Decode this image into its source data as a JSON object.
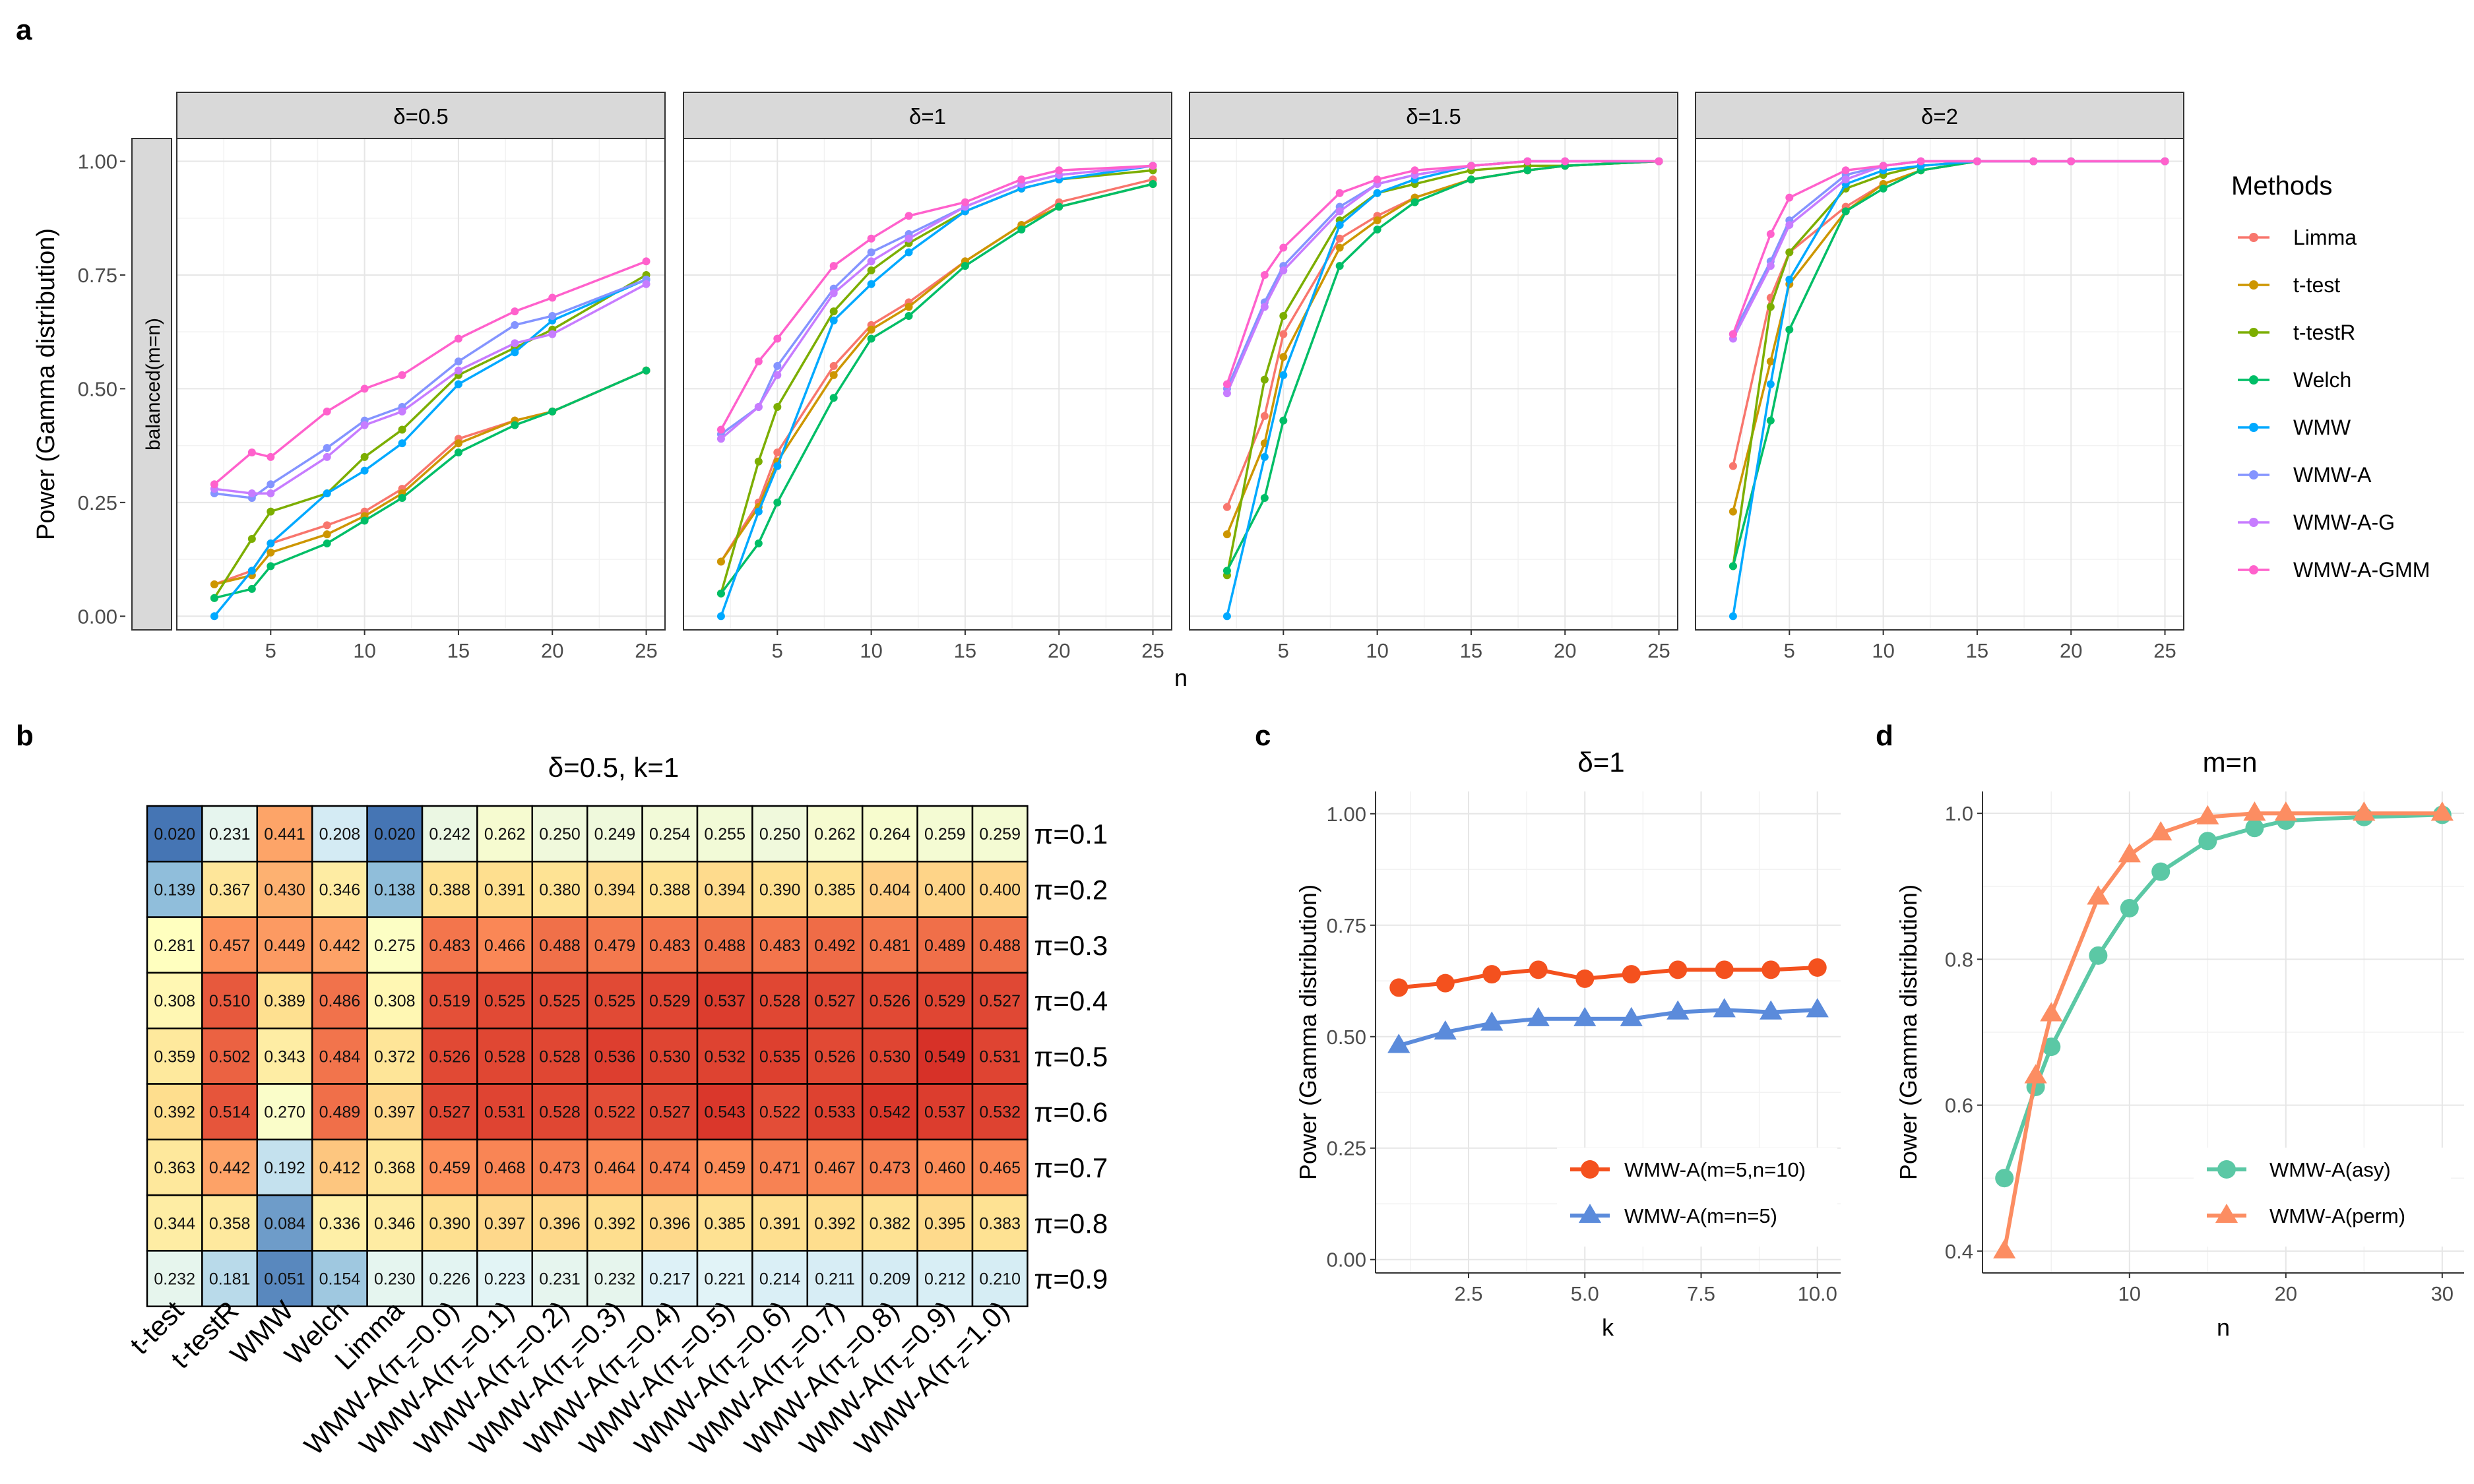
{
  "panel_labels": {
    "a": "a",
    "b": "b",
    "c": "c",
    "d": "d"
  },
  "chart_data": [
    {
      "panel": "a",
      "type": "line",
      "facets": [
        "δ=0.5",
        "δ=1",
        "δ=1.5",
        "δ=2"
      ],
      "strip_y": "balanced(m=n)",
      "xlabel": "n",
      "ylabel": "Power (Gamma distribution)",
      "xlim": [
        0,
        26
      ],
      "ylim": [
        -0.03,
        1.05
      ],
      "x_ticks": [
        5,
        10,
        15,
        20,
        25
      ],
      "y_ticks": [
        "0.00",
        "0.25",
        "0.50",
        "0.75",
        "1.00"
      ],
      "grid": true,
      "legend_title": "Methods",
      "legend_position": "right",
      "x": [
        2,
        4,
        5,
        8,
        10,
        12,
        15,
        18,
        20,
        25
      ],
      "series": [
        {
          "name": "Limma",
          "color": "#F8766D",
          "values": [
            [
              0.07,
              0.1,
              0.16,
              0.2,
              0.23,
              0.28,
              0.39,
              0.43,
              0.45,
              0.54
            ],
            [
              0.12,
              0.25,
              0.36,
              0.55,
              0.64,
              0.69,
              0.78,
              0.86,
              0.91,
              0.96
            ],
            [
              0.24,
              0.44,
              0.62,
              0.83,
              0.88,
              0.92,
              0.96,
              0.98,
              0.99,
              1.0
            ],
            [
              0.33,
              0.7,
              0.8,
              0.9,
              0.95,
              0.98,
              1.0,
              1.0,
              1.0,
              1.0
            ]
          ]
        },
        {
          "name": "t-test",
          "color": "#CD9600",
          "values": [
            [
              0.07,
              0.09,
              0.14,
              0.18,
              0.22,
              0.27,
              0.38,
              0.43,
              0.45,
              0.54
            ],
            [
              0.12,
              0.24,
              0.34,
              0.53,
              0.63,
              0.68,
              0.78,
              0.86,
              0.9,
              0.95
            ],
            [
              0.18,
              0.38,
              0.57,
              0.81,
              0.87,
              0.92,
              0.96,
              0.98,
              0.99,
              1.0
            ],
            [
              0.23,
              0.56,
              0.73,
              0.89,
              0.95,
              0.98,
              1.0,
              1.0,
              1.0,
              1.0
            ]
          ]
        },
        {
          "name": "t-testR",
          "color": "#7CAE00",
          "values": [
            [
              0.04,
              0.17,
              0.23,
              0.27,
              0.35,
              0.41,
              0.53,
              0.59,
              0.63,
              0.75
            ],
            [
              0.05,
              0.34,
              0.46,
              0.67,
              0.76,
              0.82,
              0.89,
              0.94,
              0.96,
              0.98
            ],
            [
              0.09,
              0.52,
              0.66,
              0.87,
              0.93,
              0.95,
              0.98,
              0.99,
              0.99,
              1.0
            ],
            [
              0.11,
              0.68,
              0.8,
              0.94,
              0.97,
              0.99,
              1.0,
              1.0,
              1.0,
              1.0
            ]
          ]
        },
        {
          "name": "Welch",
          "color": "#00BE67",
          "values": [
            [
              0.04,
              0.06,
              0.11,
              0.16,
              0.21,
              0.26,
              0.36,
              0.42,
              0.45,
              0.54
            ],
            [
              0.05,
              0.16,
              0.25,
              0.48,
              0.61,
              0.66,
              0.77,
              0.85,
              0.9,
              0.95
            ],
            [
              0.1,
              0.26,
              0.43,
              0.77,
              0.85,
              0.91,
              0.96,
              0.98,
              0.99,
              1.0
            ],
            [
              0.11,
              0.43,
              0.63,
              0.89,
              0.94,
              0.98,
              1.0,
              1.0,
              1.0,
              1.0
            ]
          ]
        },
        {
          "name": "WMW",
          "color": "#00A9FF",
          "values": [
            [
              0.0,
              0.1,
              0.16,
              0.27,
              0.32,
              0.38,
              0.51,
              0.58,
              0.65,
              0.74
            ],
            [
              0.0,
              0.23,
              0.33,
              0.65,
              0.73,
              0.8,
              0.89,
              0.94,
              0.96,
              0.99
            ],
            [
              0.0,
              0.35,
              0.53,
              0.86,
              0.93,
              0.96,
              0.99,
              1.0,
              1.0,
              1.0
            ],
            [
              0.0,
              0.51,
              0.74,
              0.95,
              0.98,
              0.99,
              1.0,
              1.0,
              1.0,
              1.0
            ]
          ]
        },
        {
          "name": "WMW-A",
          "color": "#8494FF",
          "values": [
            [
              0.27,
              0.26,
              0.29,
              0.37,
              0.43,
              0.46,
              0.56,
              0.64,
              0.66,
              0.74
            ],
            [
              0.4,
              0.46,
              0.55,
              0.72,
              0.8,
              0.84,
              0.9,
              0.95,
              0.97,
              0.99
            ],
            [
              0.5,
              0.69,
              0.77,
              0.9,
              0.95,
              0.97,
              0.99,
              1.0,
              1.0,
              1.0
            ],
            [
              0.62,
              0.78,
              0.87,
              0.97,
              0.99,
              1.0,
              1.0,
              1.0,
              1.0,
              1.0
            ]
          ]
        },
        {
          "name": "WMW-A-G",
          "color": "#C77CFF",
          "values": [
            [
              0.28,
              0.27,
              0.27,
              0.35,
              0.42,
              0.45,
              0.54,
              0.6,
              0.62,
              0.73
            ],
            [
              0.39,
              0.46,
              0.53,
              0.71,
              0.78,
              0.83,
              0.9,
              0.95,
              0.97,
              0.99
            ],
            [
              0.49,
              0.68,
              0.76,
              0.89,
              0.95,
              0.97,
              0.99,
              1.0,
              1.0,
              1.0
            ],
            [
              0.61,
              0.77,
              0.86,
              0.96,
              0.99,
              1.0,
              1.0,
              1.0,
              1.0,
              1.0
            ]
          ]
        },
        {
          "name": "WMW-A-GMM",
          "color": "#FF61CC",
          "values": [
            [
              0.29,
              0.36,
              0.35,
              0.45,
              0.5,
              0.53,
              0.61,
              0.67,
              0.7,
              0.78
            ],
            [
              0.41,
              0.56,
              0.61,
              0.77,
              0.83,
              0.88,
              0.91,
              0.96,
              0.98,
              0.99
            ],
            [
              0.51,
              0.75,
              0.81,
              0.93,
              0.96,
              0.98,
              0.99,
              1.0,
              1.0,
              1.0
            ],
            [
              0.62,
              0.84,
              0.92,
              0.98,
              0.99,
              1.0,
              1.0,
              1.0,
              1.0,
              1.0
            ]
          ]
        }
      ]
    },
    {
      "panel": "b",
      "type": "heatmap",
      "title": "δ=0.5, k=1",
      "rows": [
        "π=0.1",
        "π=0.2",
        "π=0.3",
        "π=0.4",
        "π=0.5",
        "π=0.6",
        "π=0.7",
        "π=0.8",
        "π=0.9"
      ],
      "columns": [
        "t-test",
        "t-testR",
        "WMW",
        "Welch",
        "Limma",
        "WMW-A(πz=0.0)",
        "WMW-A(πz=0.1)",
        "WMW-A(πz=0.2)",
        "WMW-A(πz=0.3)",
        "WMW-A(πz=0.4)",
        "WMW-A(πz=0.5)",
        "WMW-A(πz=0.6)",
        "WMW-A(πz=0.7)",
        "WMW-A(πz=0.8)",
        "WMW-A(πz=0.9)",
        "WMW-A(πz=1.0)"
      ],
      "column_labels": [
        {
          "base": "t-test",
          "sub": ""
        },
        {
          "base": "t-testR",
          "sub": ""
        },
        {
          "base": "WMW",
          "sub": ""
        },
        {
          "base": "Welch",
          "sub": ""
        },
        {
          "base": "Limma",
          "sub": ""
        },
        {
          "base": "WMW-A(π",
          "sub": "z",
          "tail": "=0.0)"
        },
        {
          "base": "WMW-A(π",
          "sub": "z",
          "tail": "=0.1)"
        },
        {
          "base": "WMW-A(π",
          "sub": "z",
          "tail": "=0.2)"
        },
        {
          "base": "WMW-A(π",
          "sub": "z",
          "tail": "=0.3)"
        },
        {
          "base": "WMW-A(π",
          "sub": "z",
          "tail": "=0.4)"
        },
        {
          "base": "WMW-A(π",
          "sub": "z",
          "tail": "=0.5)"
        },
        {
          "base": "WMW-A(π",
          "sub": "z",
          "tail": "=0.6)"
        },
        {
          "base": "WMW-A(π",
          "sub": "z",
          "tail": "=0.7)"
        },
        {
          "base": "WMW-A(π",
          "sub": "z",
          "tail": "=0.8)"
        },
        {
          "base": "WMW-A(π",
          "sub": "z",
          "tail": "=0.9)"
        },
        {
          "base": "WMW-A(π",
          "sub": "z",
          "tail": "=1.0)"
        }
      ],
      "values": [
        [
          "0.020",
          "0.231",
          "0.441",
          "0.208",
          "0.020",
          "0.242",
          "0.262",
          "0.250",
          "0.249",
          "0.254",
          "0.255",
          "0.250",
          "0.262",
          "0.264",
          "0.259",
          "0.259"
        ],
        [
          "0.139",
          "0.367",
          "0.430",
          "0.346",
          "0.138",
          "0.388",
          "0.391",
          "0.380",
          "0.394",
          "0.388",
          "0.394",
          "0.390",
          "0.385",
          "0.404",
          "0.400",
          "0.400"
        ],
        [
          "0.281",
          "0.457",
          "0.449",
          "0.442",
          "0.275",
          "0.483",
          "0.466",
          "0.488",
          "0.479",
          "0.483",
          "0.488",
          "0.483",
          "0.492",
          "0.481",
          "0.489",
          "0.488"
        ],
        [
          "0.308",
          "0.510",
          "0.389",
          "0.486",
          "0.308",
          "0.519",
          "0.525",
          "0.525",
          "0.525",
          "0.529",
          "0.537",
          "0.528",
          "0.527",
          "0.526",
          "0.529",
          "0.527"
        ],
        [
          "0.359",
          "0.502",
          "0.343",
          "0.484",
          "0.372",
          "0.526",
          "0.528",
          "0.528",
          "0.536",
          "0.530",
          "0.532",
          "0.535",
          "0.526",
          "0.530",
          "0.549",
          "0.531"
        ],
        [
          "0.392",
          "0.514",
          "0.270",
          "0.489",
          "0.397",
          "0.527",
          "0.531",
          "0.528",
          "0.522",
          "0.527",
          "0.543",
          "0.522",
          "0.533",
          "0.542",
          "0.537",
          "0.532"
        ],
        [
          "0.363",
          "0.442",
          "0.192",
          "0.412",
          "0.368",
          "0.459",
          "0.468",
          "0.473",
          "0.464",
          "0.474",
          "0.459",
          "0.471",
          "0.467",
          "0.473",
          "0.460",
          "0.465"
        ],
        [
          "0.344",
          "0.358",
          "0.084",
          "0.336",
          "0.346",
          "0.390",
          "0.397",
          "0.396",
          "0.392",
          "0.396",
          "0.385",
          "0.391",
          "0.392",
          "0.382",
          "0.395",
          "0.383"
        ],
        [
          "0.232",
          "0.181",
          "0.051",
          "0.154",
          "0.230",
          "0.226",
          "0.223",
          "0.231",
          "0.232",
          "0.217",
          "0.221",
          "0.214",
          "0.211",
          "0.209",
          "0.212",
          "0.210"
        ]
      ]
    },
    {
      "panel": "c",
      "type": "line",
      "title": "δ=1",
      "xlabel": "k",
      "ylabel": "Power (Gamma distribution)",
      "xlim": [
        0.5,
        10.5
      ],
      "ylim": [
        -0.03,
        1.05
      ],
      "x_ticks": [
        "2.5",
        "5.0",
        "7.5",
        "10.0"
      ],
      "x_tick_values": [
        2.5,
        5.0,
        7.5,
        10.0
      ],
      "y_ticks": [
        "0.00",
        "0.25",
        "0.50",
        "0.75",
        "1.00"
      ],
      "grid": true,
      "legend_position": "bottom-right",
      "x": [
        1,
        2,
        3,
        4,
        5,
        6,
        7,
        8,
        9,
        10
      ],
      "series": [
        {
          "name": "WMW-A(m=5,n=10)",
          "color": "#F4511E",
          "marker": "circle",
          "values": [
            0.61,
            0.62,
            0.64,
            0.65,
            0.63,
            0.64,
            0.65,
            0.65,
            0.65,
            0.655
          ]
        },
        {
          "name": "WMW-A(m=n=5)",
          "color": "#5B8BDB",
          "marker": "triangle",
          "values": [
            0.48,
            0.51,
            0.53,
            0.54,
            0.54,
            0.54,
            0.555,
            0.56,
            0.555,
            0.56
          ]
        }
      ]
    },
    {
      "panel": "d",
      "type": "line",
      "title": "m=n",
      "xlabel": "n",
      "ylabel": "Power (Gamma distribution)",
      "xlim": [
        0.6,
        31.4
      ],
      "ylim": [
        0.37,
        1.03
      ],
      "x_ticks": [
        "10",
        "20",
        "30"
      ],
      "x_tick_values": [
        10,
        20,
        30
      ],
      "y_ticks": [
        "0.4",
        "0.6",
        "0.8",
        "1.0"
      ],
      "y_tick_values": [
        0.4,
        0.6,
        0.8,
        1.0
      ],
      "grid": true,
      "legend_position": "bottom-right",
      "x": [
        2,
        4,
        5,
        8,
        10,
        12,
        15,
        18,
        20,
        25,
        30
      ],
      "series": [
        {
          "name": "WMW-A(asy)",
          "color": "#5BC8A5",
          "marker": "circle",
          "values": [
            0.5,
            0.625,
            0.68,
            0.805,
            0.87,
            0.92,
            0.962,
            0.98,
            0.99,
            0.995,
            0.998
          ]
        },
        {
          "name": "WMW-A(perm)",
          "color": "#FC8D62",
          "marker": "triangle",
          "values": [
            0.4,
            0.64,
            0.725,
            0.885,
            0.943,
            0.973,
            0.995,
            1.0,
            1.0,
            1.0,
            1.0
          ]
        }
      ]
    }
  ]
}
